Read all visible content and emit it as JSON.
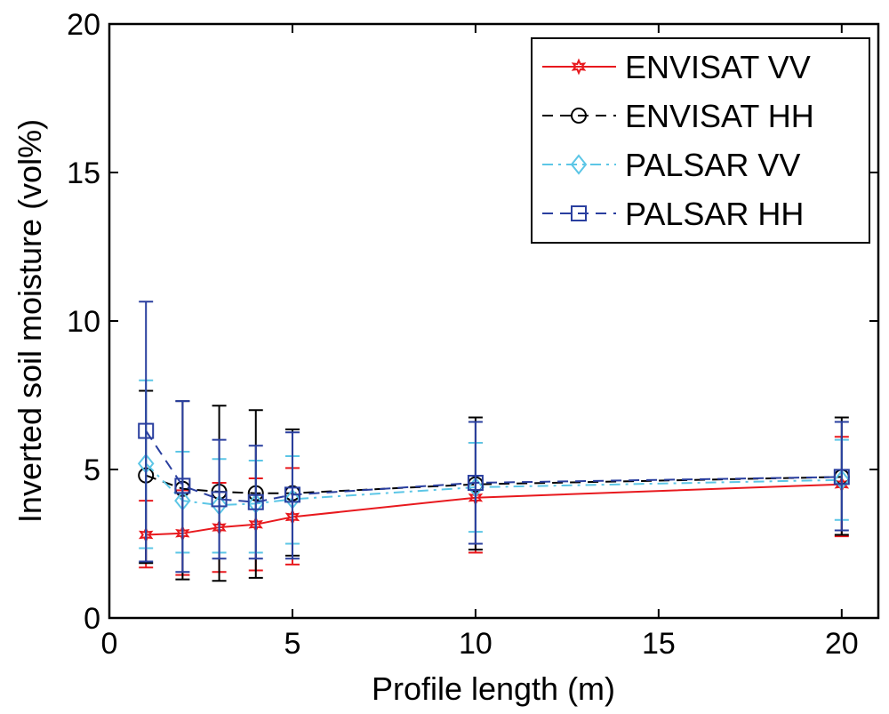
{
  "chart_data": {
    "type": "line",
    "xlabel": "Profile length (m)",
    "ylabel": "Inverted soil moisture (vol%)",
    "xlim": [
      0,
      21
    ],
    "ylim": [
      0,
      20
    ],
    "x_ticks": [
      "0",
      "5",
      "10",
      "15",
      "20"
    ],
    "y_ticks": [
      "0",
      "5",
      "10",
      "15",
      "20"
    ],
    "grid": false,
    "legend_position": "top-right",
    "x": [
      1,
      2,
      3,
      4,
      5,
      10,
      20
    ],
    "series": [
      {
        "name": "ENVISAT VV",
        "color": "#e8191e",
        "line_style": "solid",
        "marker": "hexagram",
        "values": [
          2.8,
          2.85,
          3.05,
          3.15,
          3.4,
          4.05,
          4.5
        ],
        "error_low": [
          1.7,
          1.45,
          1.55,
          1.6,
          1.8,
          2.2,
          2.75
        ],
        "error_high": [
          3.95,
          4.3,
          4.55,
          4.7,
          5.05,
          5.9,
          6.1
        ]
      },
      {
        "name": "ENVISAT HH",
        "color": "#000000",
        "line_style": "dashed",
        "marker": "circle",
        "values": [
          4.8,
          4.35,
          4.25,
          4.2,
          4.2,
          4.5,
          4.75
        ],
        "error_low": [
          1.85,
          1.3,
          1.25,
          1.35,
          2.1,
          2.3,
          2.8
        ],
        "error_high": [
          7.65,
          7.3,
          7.15,
          7.0,
          6.35,
          6.75,
          6.75
        ]
      },
      {
        "name": "PALSAR VV",
        "color": "#5cc6e6",
        "line_style": "dashdot",
        "marker": "diamond",
        "values": [
          5.2,
          3.95,
          3.8,
          3.85,
          4.0,
          4.4,
          4.65
        ],
        "error_low": [
          2.35,
          2.2,
          2.2,
          2.2,
          2.5,
          2.9,
          3.3
        ],
        "error_high": [
          8.0,
          5.6,
          5.35,
          5.3,
          5.45,
          5.9,
          6.0
        ]
      },
      {
        "name": "PALSAR HH",
        "color": "#2a3f9f",
        "line_style": "dashed",
        "marker": "square",
        "values": [
          6.3,
          4.45,
          4.0,
          3.9,
          4.15,
          4.55,
          4.75
        ],
        "error_low": [
          1.9,
          1.55,
          2.0,
          2.0,
          2.0,
          2.5,
          2.95
        ],
        "error_high": [
          10.65,
          7.3,
          6.0,
          5.8,
          6.25,
          6.6,
          6.6
        ]
      }
    ]
  }
}
